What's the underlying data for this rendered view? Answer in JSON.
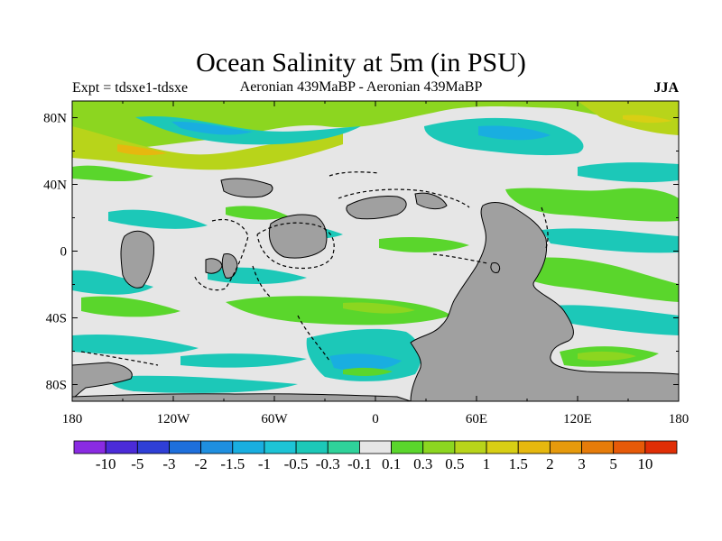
{
  "title": "Ocean Salinity at 5m (in PSU)",
  "subtitle_left": "Expt = tdsxe1-tdsxe",
  "subtitle_center": "Aeronian 439MaBP - Aeronian 439MaBP",
  "subtitle_right": "JJA",
  "lat_ticks": [
    {
      "label": "80N",
      "value": 80
    },
    {
      "label": "40N",
      "value": 40
    },
    {
      "label": "0",
      "value": 0
    },
    {
      "label": "40S",
      "value": -40
    },
    {
      "label": "80S",
      "value": -80
    }
  ],
  "lon_ticks": [
    {
      "label": "180",
      "value": -180
    },
    {
      "label": "120W",
      "value": -120
    },
    {
      "label": "60W",
      "value": -60
    },
    {
      "label": "0",
      "value": 0
    },
    {
      "label": "60E",
      "value": 60
    },
    {
      "label": "120E",
      "value": 120
    },
    {
      "label": "180",
      "value": 180
    }
  ],
  "colorbar": {
    "colors": [
      "#8a2be2",
      "#4b2bd8",
      "#2f3fd6",
      "#1e6fdc",
      "#1f8fe0",
      "#19aee0",
      "#1dc4d6",
      "#1cc8b8",
      "#2fd29a",
      "#e6e6e6",
      "#5ad62c",
      "#8cd620",
      "#b8d41a",
      "#d8cf14",
      "#e6b80f",
      "#e69a0c",
      "#e67c0a",
      "#e65a08",
      "#e02e06"
    ],
    "labels": [
      "-10",
      "-5",
      "-3",
      "-2",
      "-1.5",
      "-1",
      "-0.5",
      "-0.3",
      "-0.1",
      "0.1",
      "0.3",
      "0.5",
      "1",
      "1.5",
      "2",
      "3",
      "5",
      "10"
    ]
  },
  "chart_data": {
    "type": "heatmap",
    "title": "Ocean Salinity at 5m (in PSU)",
    "variable": "salinity difference",
    "units": "PSU",
    "xlim": [
      -180,
      180
    ],
    "ylim": [
      -90,
      90
    ],
    "levels": [
      -10,
      -5,
      -3,
      -2,
      -1.5,
      -1,
      -0.5,
      -0.3,
      -0.1,
      0.1,
      0.3,
      0.5,
      1,
      1.5,
      2,
      3,
      5,
      10
    ]
  },
  "colors": {
    "land": "#a0a0a0",
    "ocean_neutral": "#e6e6e6"
  }
}
